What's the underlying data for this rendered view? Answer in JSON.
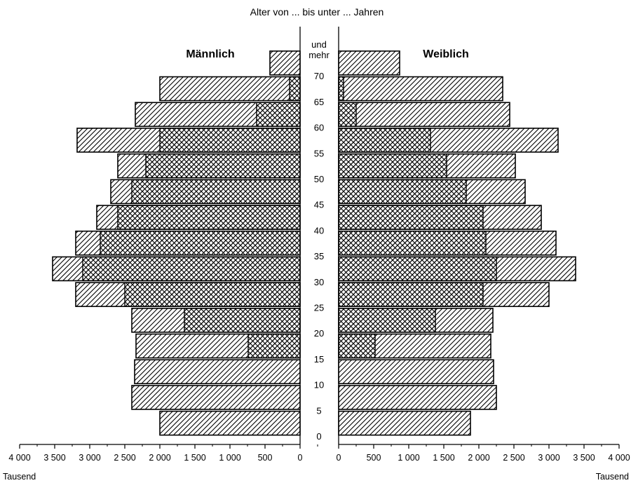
{
  "chart_data": {
    "type": "bar",
    "title": "Alter von ... bis unter ... Jahren",
    "left_label": "Männlich",
    "right_label": "Weiblich",
    "x_unit_left": "Tausend",
    "x_unit_right": "Tausend",
    "top_group_label": [
      "und",
      "mehr"
    ],
    "age_labels": [
      "0",
      "5",
      "10",
      "15",
      "20",
      "25",
      "30",
      "35",
      "40",
      "45",
      "50",
      "55",
      "60",
      "65",
      "70"
    ],
    "x_ticks_left": [
      "4 000",
      "3 500",
      "3 000",
      "2 500",
      "2 000",
      "1 500",
      "1 000",
      "500",
      "0"
    ],
    "x_ticks_right": [
      "0",
      "500",
      "1 000",
      "1 500",
      "2 000",
      "2 500",
      "3 000",
      "3 500",
      "4 000"
    ],
    "xlim": [
      0,
      4000
    ],
    "groups": [
      "0-5",
      "5-10",
      "10-15",
      "15-20",
      "20-25",
      "25-30",
      "30-35",
      "35-40",
      "40-45",
      "45-50",
      "50-55",
      "55-60",
      "60-65",
      "65-70",
      "70 und mehr"
    ],
    "series": [
      {
        "name": "Männlich",
        "total": [
          2000,
          2400,
          2360,
          2340,
          2400,
          3200,
          3530,
          3200,
          2900,
          2700,
          2600,
          3180,
          2350,
          2000,
          430
        ],
        "inner": [
          0,
          0,
          0,
          740,
          1650,
          2500,
          3100,
          2850,
          2600,
          2400,
          2200,
          2000,
          620,
          150,
          0
        ]
      },
      {
        "name": "Weiblich",
        "total": [
          1880,
          2250,
          2210,
          2170,
          2200,
          3000,
          3380,
          3100,
          2890,
          2660,
          2520,
          3130,
          2440,
          2340,
          870
        ],
        "inner": [
          0,
          0,
          0,
          520,
          1380,
          2060,
          2250,
          2100,
          2060,
          1820,
          1540,
          1310,
          250,
          70,
          0
        ]
      }
    ],
    "grid": false,
    "pattern_outer": "diagonal-hatch",
    "pattern_inner": "crosshatch",
    "color_ink": "#000000",
    "color_background": "#ffffff"
  }
}
